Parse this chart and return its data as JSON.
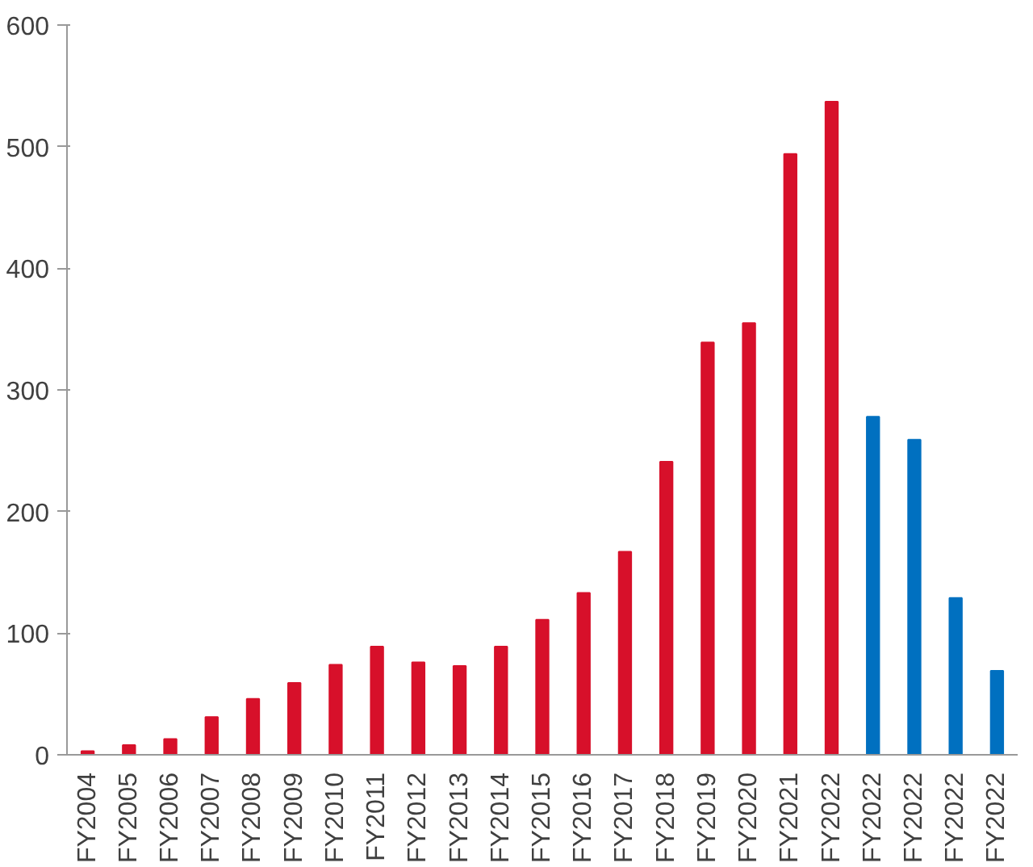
{
  "chart_data": {
    "type": "bar",
    "categories": [
      "FY2004",
      "FY2005",
      "FY2006",
      "FY2007",
      "FY2008",
      "FY2009",
      "FY2010",
      "FY2011",
      "FY2012",
      "FY2013",
      "FY2014",
      "FY2015",
      "FY2016",
      "FY2017",
      "FY2018",
      "FY2019",
      "FY2020",
      "FY2021",
      "FY2022",
      "FY2022",
      "FY2022",
      "FY2022",
      "FY2022"
    ],
    "values": [
      3,
      8,
      13,
      31,
      46,
      59,
      74,
      89,
      76,
      73,
      89,
      111,
      133,
      167,
      241,
      339,
      355,
      494,
      537,
      278,
      259,
      129,
      69
    ],
    "colors": [
      "#d7102a",
      "#d7102a",
      "#d7102a",
      "#d7102a",
      "#d7102a",
      "#d7102a",
      "#d7102a",
      "#d7102a",
      "#d7102a",
      "#d7102a",
      "#d7102a",
      "#d7102a",
      "#d7102a",
      "#d7102a",
      "#d7102a",
      "#d7102a",
      "#d7102a",
      "#d7102a",
      "#d7102a",
      "#0070c0",
      "#0070c0",
      "#0070c0",
      "#0070c0"
    ],
    "ylim": [
      0,
      600
    ],
    "yticks": [
      0,
      100,
      200,
      300,
      400,
      500,
      600
    ]
  }
}
